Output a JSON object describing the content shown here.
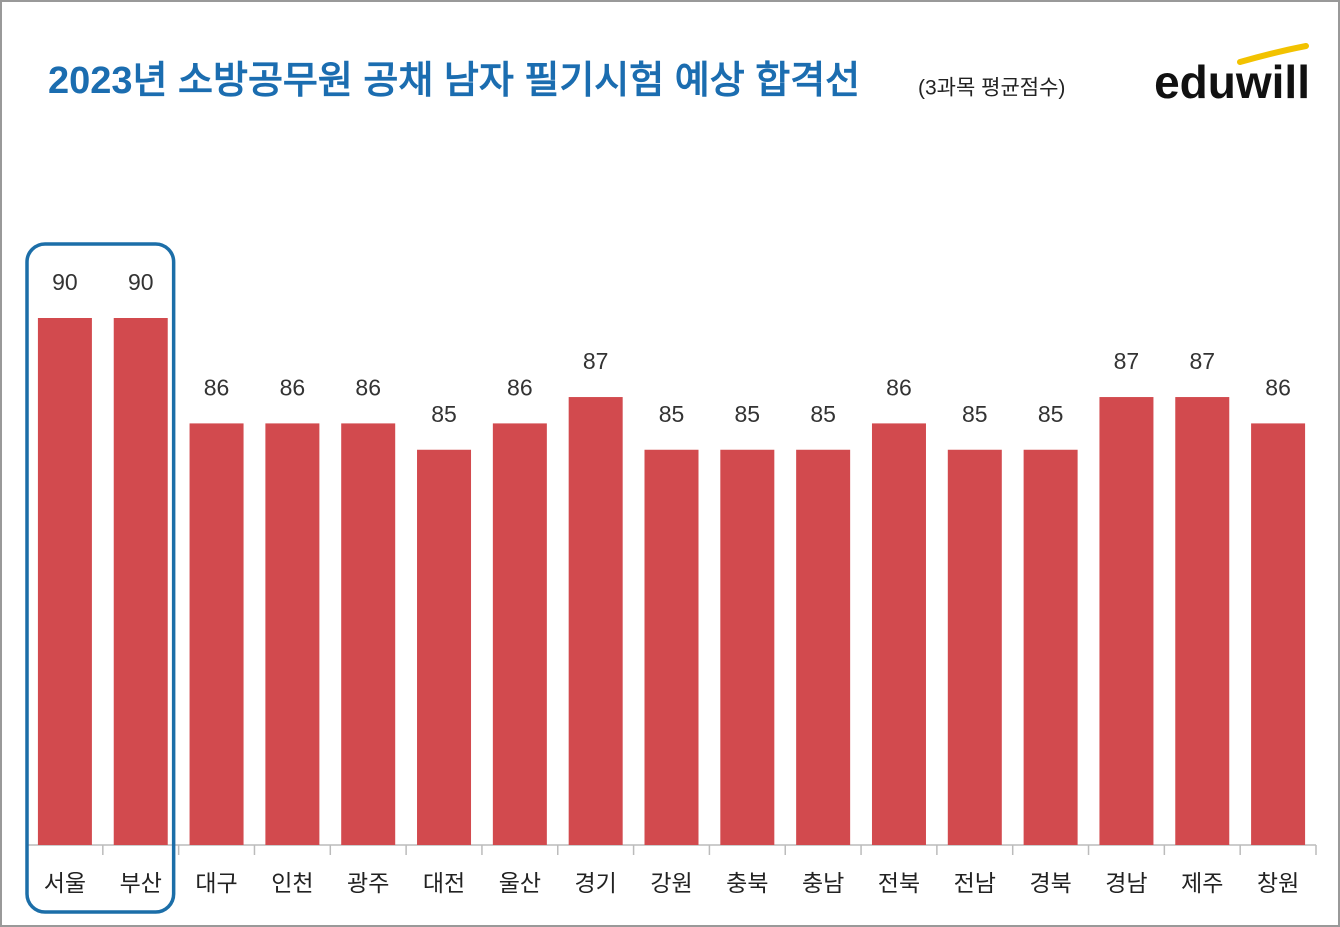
{
  "chart_data": {
    "type": "bar",
    "title": "2023년 소방공무원 공채 남자 필기시험 예상 합격선",
    "subtitle": "(3과목 평균점수)",
    "logo": "eduwill",
    "categories": [
      "서울",
      "부산",
      "대구",
      "인천",
      "광주",
      "대전",
      "울산",
      "경기",
      "강원",
      "충북",
      "충남",
      "전북",
      "전남",
      "경북",
      "경남",
      "제주",
      "창원"
    ],
    "values": [
      90,
      90,
      86,
      86,
      86,
      85,
      86,
      87,
      85,
      85,
      85,
      86,
      85,
      85,
      87,
      87,
      86
    ],
    "color": "#d24a4e",
    "ylim": [
      70,
      90
    ]
  }
}
